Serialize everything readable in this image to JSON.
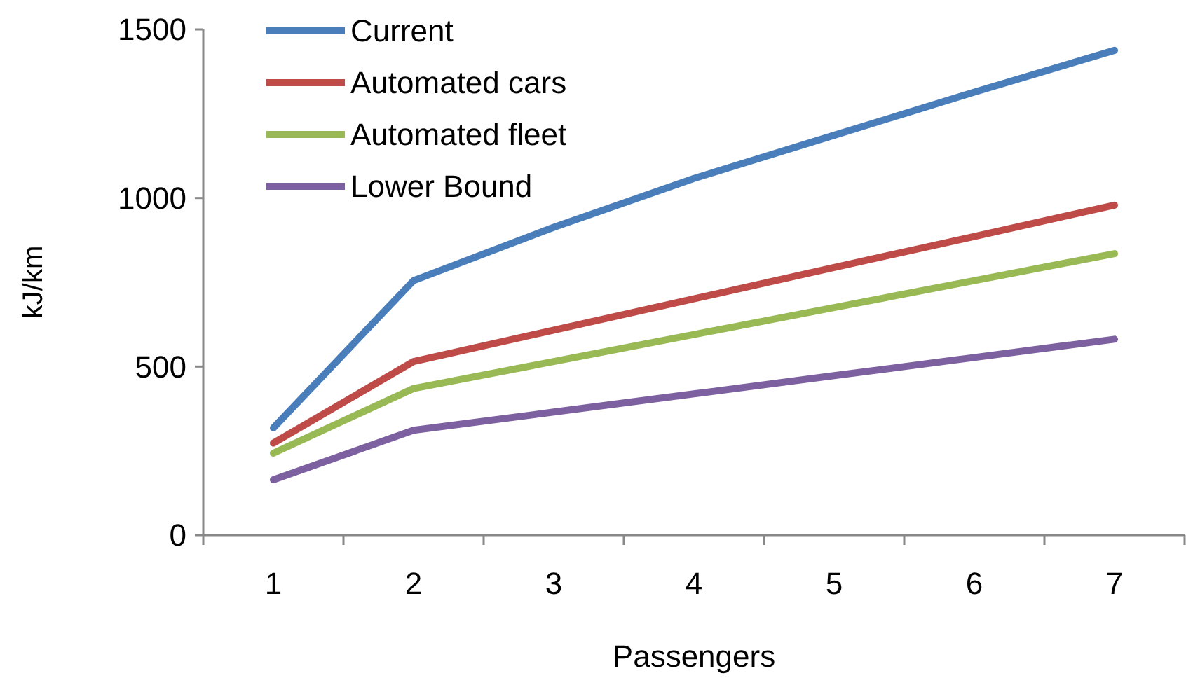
{
  "chart_data": {
    "type": "line",
    "xlabel": "Passengers",
    "ylabel": "kJ/km",
    "categories": [
      "1",
      "2",
      "3",
      "4",
      "5",
      "6",
      "7"
    ],
    "series": [
      {
        "name": "Current",
        "color": "#4a7ebb",
        "values": [
          318,
          755,
          913,
          1058,
          1186,
          1314,
          1438
        ]
      },
      {
        "name": "Automated cars",
        "color": "#be4b48",
        "values": [
          273,
          515,
          608,
          701,
          794,
          886,
          979
        ]
      },
      {
        "name": "Automated fleet",
        "color": "#98b954",
        "values": [
          243,
          435,
          515,
          595,
          675,
          755,
          835
        ]
      },
      {
        "name": "Lower Bound",
        "color": "#7d60a0",
        "values": [
          164,
          311,
          365,
          419,
          473,
          527,
          581
        ]
      }
    ],
    "ylim": [
      0,
      1500
    ],
    "yticks": [
      0,
      500,
      1000,
      1500
    ],
    "grid": false,
    "legend": "top left",
    "marker": "none",
    "line_style": "solid"
  }
}
